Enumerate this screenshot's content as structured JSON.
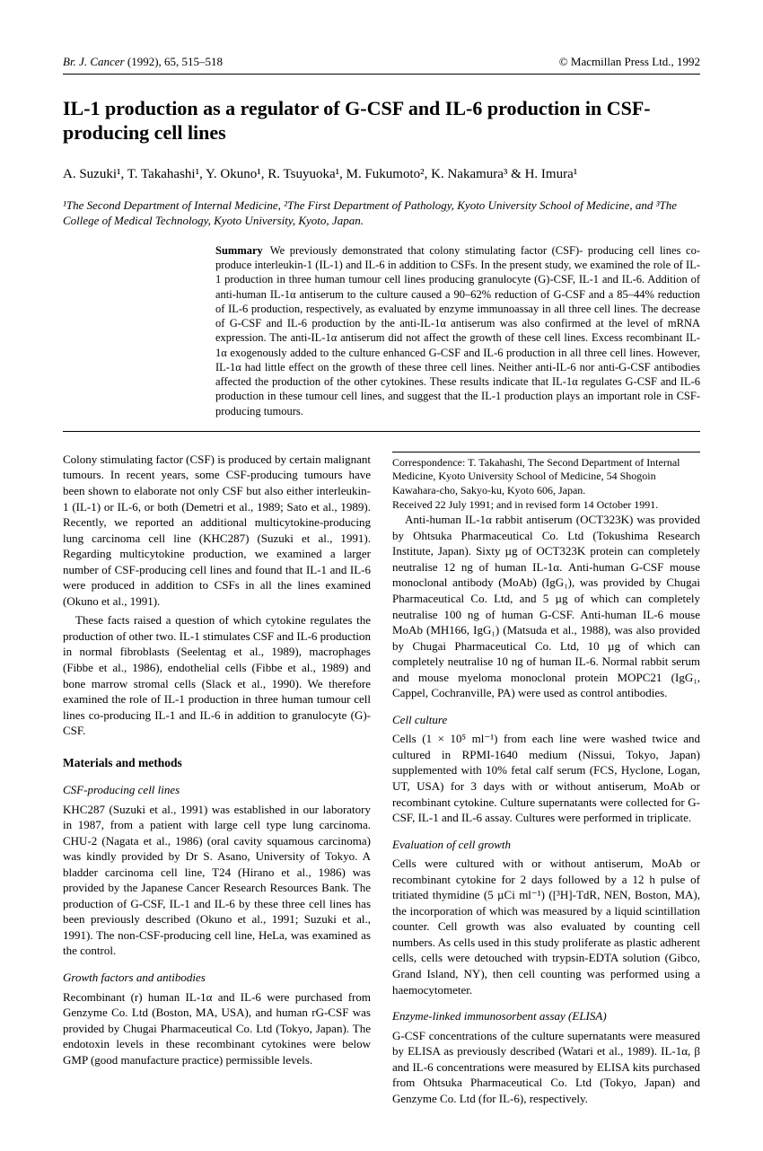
{
  "header": {
    "journal": "Br. J. Cancer",
    "year_vol_pages": "(1992), 65, 515–518",
    "copyright": "© Macmillan Press Ltd., 1992"
  },
  "title": "IL-1 production as a regulator of G-CSF and IL-6 production in CSF-producing cell lines",
  "authors": "A. Suzuki¹, T. Takahashi¹, Y. Okuno¹, R. Tsuyuoka¹, M. Fukumoto², K. Nakamura³ & H. Imura¹",
  "affiliations": "¹The Second Department of Internal Medicine, ²The First Department of Pathology, Kyoto University School of Medicine, and ³The College of Medical Technology, Kyoto University, Kyoto, Japan.",
  "summary": {
    "label": "Summary",
    "text": "We previously demonstrated that colony stimulating factor (CSF)- producing cell lines co-produce interleukin-1 (IL-1) and IL-6 in addition to CSFs. In the present study, we examined the role of IL-1 production in three human tumour cell lines producing granulocyte (G)-CSF, IL-1 and IL-6. Addition of anti-human IL-1α antiserum to the culture caused a 90–62% reduction of G-CSF and a 85–44% reduction of IL-6 production, respectively, as evaluated by enzyme immunoassay in all three cell lines. The decrease of G-CSF and IL-6 production by the anti-IL-1α antiserum was also confirmed at the level of mRNA expression. The anti-IL-1α antiserum did not affect the growth of these cell lines. Excess recombinant IL-1α exogenously added to the culture enhanced G-CSF and IL-6 production in all three cell lines. However, IL-1α had little effect on the growth of these three cell lines. Neither anti-IL-6 nor anti-G-CSF antibodies affected the production of the other cytokines. These results indicate that IL-1α regulates G-CSF and IL-6 production in these tumour cell lines, and suggest that the IL-1 production plays an important role in CSF-producing tumours."
  },
  "body": {
    "intro_p1": "Colony stimulating factor (CSF) is produced by certain malignant tumours. In recent years, some CSF-producing tumours have been shown to elaborate not only CSF but also either interleukin-1 (IL-1) or IL-6, or both (Demetri et al., 1989; Sato et al., 1989). Recently, we reported an additional multicytokine-producing lung carcinoma cell line (KHC287) (Suzuki et al., 1991). Regarding multicytokine production, we examined a larger number of CSF-producing cell lines and found that IL-1 and IL-6 were produced in addition to CSFs in all the lines examined (Okuno et al., 1991).",
    "intro_p2": "These facts raised a question of which cytokine regulates the production of other two. IL-1 stimulates CSF and IL-6 production in normal fibroblasts (Seelentag et al., 1989), macrophages (Fibbe et al., 1986), endothelial cells (Fibbe et al., 1989) and bone marrow stromal cells (Slack et al., 1990). We therefore examined the role of IL-1 production in three human tumour cell lines co-producing IL-1 and IL-6 in addition to granulocyte (G)-CSF.",
    "mm_heading": "Materials and methods",
    "csf_heading": "CSF-producing cell lines",
    "csf_p": "KHC287 (Suzuki et al., 1991) was established in our laboratory in 1987, from a patient with large cell type lung carcinoma. CHU-2 (Nagata et al., 1986) (oral cavity squamous carcinoma) was kindly provided by Dr S. Asano, University of Tokyo. A bladder carcinoma cell line, T24 (Hirano et al., 1986) was provided by the Japanese Cancer Research Resources Bank. The production of G-CSF, IL-1 and IL-6 by these three cell lines has been previously described (Okuno et al., 1991; Suzuki et al., 1991). The non-CSF-producing cell line, HeLa, was examined as the control.",
    "gf_heading": "Growth factors and antibodies",
    "gf_p1": "Recombinant (r) human IL-1α and IL-6 were purchased from Genzyme Co. Ltd (Boston, MA, USA), and human rG-CSF was provided by Chugai Pharmaceutical Co. Ltd (Tokyo, Japan). The endotoxin levels in these recombinant cytokines were below GMP (good manufacture practice) permissible levels.",
    "gf_p2": "Anti-human IL-1α rabbit antiserum (OCT323K) was provided by Ohtsuka Pharmaceutical Co. Ltd (Tokushima Research Institute, Japan). Sixty µg of OCT323K protein can completely neutralise 12 ng of human IL-1α. Anti-human G-CSF mouse monoclonal antibody (MoAb) (IgG₁), was provided by Chugai Pharmaceutical Co. Ltd, and 5 µg of which can completely neutralise 100 ng of human G-CSF. Anti-human IL-6 mouse MoAb (MH166, IgG₁) (Matsuda et al., 1988), was also provided by Chugai Pharmaceutical Co. Ltd, 10 µg of which can completely neutralise 10 ng of human IL-6. Normal rabbit serum and mouse myeloma monoclonal protein MOPC21 (IgG₁, Cappel, Cochranville, PA) were used as control antibodies.",
    "cell_heading": "Cell culture",
    "cell_p": "Cells (1 × 10⁵ ml⁻¹) from each line were washed twice and cultured in RPMI-1640 medium (Nissui, Tokyo, Japan) supplemented with 10% fetal calf serum (FCS, Hyclone, Logan, UT, USA) for 3 days with or without antiserum, MoAb or recombinant cytokine. Culture supernatants were collected for G-CSF, IL-1 and IL-6 assay. Cultures were performed in triplicate.",
    "eval_heading": "Evaluation of cell growth",
    "eval_p": "Cells were cultured with or without antiserum, MoAb or recombinant cytokine for 2 days followed by a 12 h pulse of tritiated thymidine (5 µCi ml⁻¹) ([³H]-TdR, NEN, Boston, MA), the incorporation of which was measured by a liquid scintillation counter. Cell growth was also evaluated by counting cell numbers. As cells used in this study proliferate as plastic adherent cells, cells were detouched with trypsin-EDTA solution (Gibco, Grand Island, NY), then cell counting was performed using a haemocytometer.",
    "elisa_heading": "Enzyme-linked immunosorbent assay (ELISA)",
    "elisa_p": "G-CSF concentrations of the culture supernatants were measured by ELISA as previously described (Watari et al., 1989). IL-1α, β and IL-6 concentrations were measured by ELISA kits purchased from Ohtsuka Pharmaceutical Co. Ltd (Tokyo, Japan) and Genzyme Co. Ltd (for IL-6), respectively."
  },
  "footnote": {
    "correspondence": "Correspondence: T. Takahashi, The Second Department of Internal Medicine, Kyoto University School of Medicine, 54 Shogoin Kawahara-cho, Sakyo-ku, Kyoto 606, Japan.",
    "received": "Received 22 July 1991; and in revised form 14 October 1991."
  }
}
